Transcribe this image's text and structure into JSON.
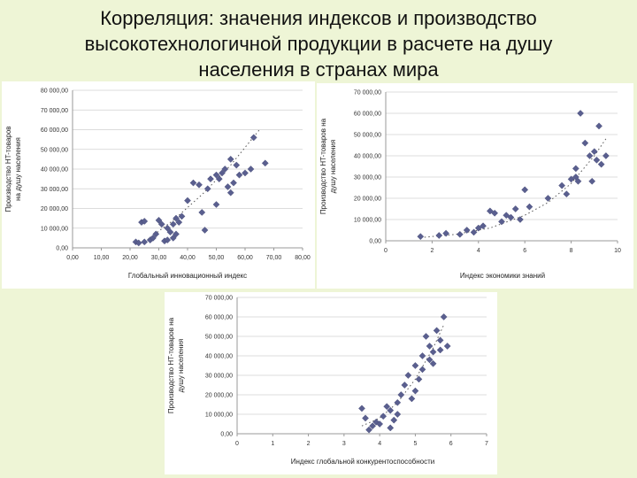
{
  "slide": {
    "title_lines": [
      "Корреляция: значения индексов и производство",
      "высокотехнологичной продукции в расчете на душу",
      "населения в странах мира"
    ]
  },
  "colors": {
    "marker": "#5a5f8f",
    "trend": "#555555",
    "grid": "#d0d0d0",
    "axis": "#999999"
  },
  "chart_data": [
    {
      "type": "scatter",
      "title": "",
      "xlabel": "Глобальный инновационный индекс",
      "ylabel": [
        "Производство HT-товаров",
        "на душу населения"
      ],
      "xlim": [
        0,
        80
      ],
      "ylim": [
        0,
        80000
      ],
      "x_ticks": [
        0,
        10,
        20,
        30,
        40,
        50,
        60,
        70,
        80
      ],
      "x_tick_labels": [
        "0,00",
        "10,00",
        "20,00",
        "30,00",
        "40,00",
        "50,00",
        "60,00",
        "70,00",
        "80,00"
      ],
      "y_ticks": [
        0,
        10000,
        20000,
        30000,
        40000,
        50000,
        60000,
        70000,
        80000
      ],
      "y_tick_labels": [
        "0,00",
        "10 000,00",
        "20 000,00",
        "30 000,00",
        "40 000,00",
        "50 000,00",
        "60 000,00",
        "70 000,00",
        "80 000,00"
      ],
      "grid": true,
      "trendline": {
        "type": "polynomial",
        "x": [
          25,
          35,
          45,
          55,
          65
        ],
        "y": [
          3000,
          14000,
          27000,
          42000,
          60000
        ]
      },
      "points": [
        {
          "x": 22,
          "y": 3000
        },
        {
          "x": 23,
          "y": 2500
        },
        {
          "x": 24,
          "y": 13000
        },
        {
          "x": 25,
          "y": 13500
        },
        {
          "x": 25,
          "y": 3000
        },
        {
          "x": 27,
          "y": 4000
        },
        {
          "x": 28,
          "y": 5000
        },
        {
          "x": 29,
          "y": 7000
        },
        {
          "x": 30,
          "y": 14000
        },
        {
          "x": 31,
          "y": 12000
        },
        {
          "x": 32,
          "y": 3500
        },
        {
          "x": 33,
          "y": 4000
        },
        {
          "x": 33,
          "y": 10000
        },
        {
          "x": 34,
          "y": 8000
        },
        {
          "x": 35,
          "y": 12000
        },
        {
          "x": 35,
          "y": 5000
        },
        {
          "x": 36,
          "y": 15000
        },
        {
          "x": 36,
          "y": 7000
        },
        {
          "x": 37,
          "y": 13000
        },
        {
          "x": 38,
          "y": 16000
        },
        {
          "x": 40,
          "y": 24000
        },
        {
          "x": 42,
          "y": 33000
        },
        {
          "x": 44,
          "y": 32000
        },
        {
          "x": 45,
          "y": 18000
        },
        {
          "x": 46,
          "y": 9000
        },
        {
          "x": 47,
          "y": 30000
        },
        {
          "x": 48,
          "y": 35000
        },
        {
          "x": 50,
          "y": 22000
        },
        {
          "x": 50,
          "y": 37000
        },
        {
          "x": 51,
          "y": 35000
        },
        {
          "x": 52,
          "y": 38000
        },
        {
          "x": 53,
          "y": 40000
        },
        {
          "x": 54,
          "y": 31000
        },
        {
          "x": 55,
          "y": 28000
        },
        {
          "x": 55,
          "y": 45000
        },
        {
          "x": 56,
          "y": 33000
        },
        {
          "x": 57,
          "y": 42000
        },
        {
          "x": 58,
          "y": 37000
        },
        {
          "x": 60,
          "y": 38000
        },
        {
          "x": 62,
          "y": 40000
        },
        {
          "x": 63,
          "y": 56000
        },
        {
          "x": 67,
          "y": 43000
        }
      ]
    },
    {
      "type": "scatter",
      "title": "",
      "xlabel": "Индекс экономики знаний",
      "ylabel": [
        "Производство HT-товаров на",
        "душу населения"
      ],
      "xlim": [
        0,
        10
      ],
      "ylim": [
        0,
        70000
      ],
      "x_ticks": [
        0,
        2,
        4,
        6,
        8,
        10
      ],
      "x_tick_labels": [
        "0",
        "2",
        "4",
        "6",
        "8",
        "10"
      ],
      "y_ticks": [
        0,
        10000,
        20000,
        30000,
        40000,
        50000,
        60000,
        70000
      ],
      "y_tick_labels": [
        "0,00",
        "10 000,00",
        "20 000,00",
        "30 000,00",
        "40 000,00",
        "50 000,00",
        "60 000,00",
        "70 000,00"
      ],
      "grid": true,
      "trendline": {
        "type": "exponential",
        "x": [
          1.5,
          3,
          4.5,
          6,
          7,
          8,
          9,
          9.5
        ],
        "y": [
          1500,
          3000,
          6000,
          12000,
          18000,
          27000,
          40000,
          48000
        ]
      },
      "points": [
        {
          "x": 1.5,
          "y": 2000
        },
        {
          "x": 2.3,
          "y": 2500
        },
        {
          "x": 2.6,
          "y": 3500
        },
        {
          "x": 3.2,
          "y": 3000
        },
        {
          "x": 3.5,
          "y": 5000
        },
        {
          "x": 3.8,
          "y": 4000
        },
        {
          "x": 4.0,
          "y": 6000
        },
        {
          "x": 4.2,
          "y": 7000
        },
        {
          "x": 4.5,
          "y": 14000
        },
        {
          "x": 4.7,
          "y": 13000
        },
        {
          "x": 5.0,
          "y": 9000
        },
        {
          "x": 5.2,
          "y": 12000
        },
        {
          "x": 5.4,
          "y": 11000
        },
        {
          "x": 5.6,
          "y": 15000
        },
        {
          "x": 5.8,
          "y": 10000
        },
        {
          "x": 6.0,
          "y": 24000
        },
        {
          "x": 6.2,
          "y": 16000
        },
        {
          "x": 7.0,
          "y": 20000
        },
        {
          "x": 7.6,
          "y": 26000
        },
        {
          "x": 7.8,
          "y": 22000
        },
        {
          "x": 8.0,
          "y": 29000
        },
        {
          "x": 8.2,
          "y": 34000
        },
        {
          "x": 8.2,
          "y": 30000
        },
        {
          "x": 8.3,
          "y": 28000
        },
        {
          "x": 8.4,
          "y": 60000
        },
        {
          "x": 8.6,
          "y": 46000
        },
        {
          "x": 8.8,
          "y": 40000
        },
        {
          "x": 8.9,
          "y": 28000
        },
        {
          "x": 9.0,
          "y": 42000
        },
        {
          "x": 9.1,
          "y": 38000
        },
        {
          "x": 9.2,
          "y": 54000
        },
        {
          "x": 9.3,
          "y": 36000
        },
        {
          "x": 9.5,
          "y": 40000
        }
      ]
    },
    {
      "type": "scatter",
      "title": "",
      "xlabel": "Индекс глобальной конкурентоспособности",
      "ylabel": [
        "Производство HT-товаров на",
        "душу населения"
      ],
      "xlim": [
        0,
        7
      ],
      "ylim": [
        0,
        70000
      ],
      "x_ticks": [
        0,
        1,
        2,
        3,
        4,
        5,
        6,
        7
      ],
      "x_tick_labels": [
        "0",
        "1",
        "2",
        "3",
        "4",
        "5",
        "6",
        "7"
      ],
      "y_ticks": [
        0,
        10000,
        20000,
        30000,
        40000,
        50000,
        60000,
        70000
      ],
      "y_tick_labels": [
        "0,00",
        "10 000,00",
        "20 000,00",
        "30 000,00",
        "40 000,00",
        "50 000,00",
        "60 000,00",
        "70 000,00"
      ],
      "grid": true,
      "trendline": {
        "type": "exponential",
        "x": [
          3.5,
          4.0,
          4.5,
          5.0,
          5.5,
          5.8
        ],
        "y": [
          4000,
          8000,
          16000,
          28000,
          44000,
          56000
        ]
      },
      "points": [
        {
          "x": 3.5,
          "y": 13000
        },
        {
          "x": 3.6,
          "y": 8000
        },
        {
          "x": 3.7,
          "y": 2000
        },
        {
          "x": 3.8,
          "y": 4000
        },
        {
          "x": 3.9,
          "y": 6000
        },
        {
          "x": 4.0,
          "y": 5000
        },
        {
          "x": 4.1,
          "y": 9000
        },
        {
          "x": 4.2,
          "y": 14000
        },
        {
          "x": 4.3,
          "y": 12000
        },
        {
          "x": 4.3,
          "y": 3000
        },
        {
          "x": 4.4,
          "y": 7000
        },
        {
          "x": 4.5,
          "y": 16000
        },
        {
          "x": 4.5,
          "y": 10000
        },
        {
          "x": 4.6,
          "y": 20000
        },
        {
          "x": 4.7,
          "y": 25000
        },
        {
          "x": 4.8,
          "y": 30000
        },
        {
          "x": 4.9,
          "y": 18000
        },
        {
          "x": 5.0,
          "y": 22000
        },
        {
          "x": 5.0,
          "y": 35000
        },
        {
          "x": 5.1,
          "y": 28000
        },
        {
          "x": 5.2,
          "y": 40000
        },
        {
          "x": 5.2,
          "y": 33000
        },
        {
          "x": 5.3,
          "y": 50000
        },
        {
          "x": 5.4,
          "y": 45000
        },
        {
          "x": 5.4,
          "y": 38000
        },
        {
          "x": 5.5,
          "y": 42000
        },
        {
          "x": 5.5,
          "y": 36000
        },
        {
          "x": 5.6,
          "y": 53000
        },
        {
          "x": 5.7,
          "y": 48000
        },
        {
          "x": 5.7,
          "y": 43000
        },
        {
          "x": 5.8,
          "y": 60000
        },
        {
          "x": 5.9,
          "y": 45000
        }
      ]
    }
  ]
}
